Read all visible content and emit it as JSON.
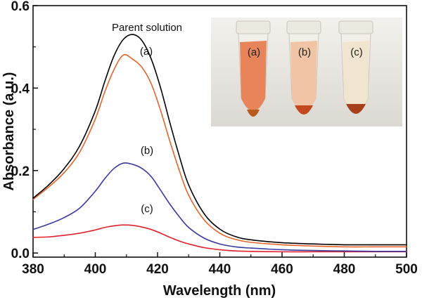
{
  "chart_data": {
    "type": "line",
    "title": "",
    "xlabel": "Wavelength (nm)",
    "ylabel": "Absorbance (a.u.)",
    "xlim": [
      380,
      500
    ],
    "ylim": [
      -0.01,
      0.6
    ],
    "xticks": [
      380,
      400,
      420,
      440,
      460,
      480,
      500
    ],
    "yticks": [
      0.0,
      0.2,
      0.4,
      0.6
    ],
    "ytick_labels": [
      "0.0",
      "0.2",
      "0.4",
      "0.6"
    ],
    "grid": false,
    "x": [
      380,
      385,
      390,
      395,
      400,
      403,
      406,
      409,
      412,
      415,
      418,
      421,
      424,
      427,
      430,
      435,
      440,
      445,
      450,
      460,
      470,
      480,
      490,
      500
    ],
    "series": [
      {
        "name": "Parent solution",
        "color": "#000000",
        "values": [
          0.133,
          0.165,
          0.205,
          0.26,
          0.345,
          0.415,
          0.478,
          0.518,
          0.53,
          0.515,
          0.47,
          0.4,
          0.315,
          0.235,
          0.165,
          0.095,
          0.058,
          0.04,
          0.032,
          0.025,
          0.022,
          0.02,
          0.02,
          0.02
        ]
      },
      {
        "name": "(a)",
        "color": "#e8642a",
        "values": [
          0.13,
          0.16,
          0.195,
          0.245,
          0.325,
          0.39,
          0.445,
          0.48,
          0.47,
          0.45,
          0.41,
          0.345,
          0.27,
          0.2,
          0.14,
          0.08,
          0.048,
          0.033,
          0.026,
          0.02,
          0.017,
          0.015,
          0.015,
          0.015
        ]
      },
      {
        "name": "(b)",
        "color": "#3a3aa0",
        "values": [
          0.057,
          0.07,
          0.086,
          0.109,
          0.15,
          0.18,
          0.205,
          0.218,
          0.215,
          0.205,
          0.185,
          0.152,
          0.118,
          0.088,
          0.062,
          0.036,
          0.022,
          0.015,
          0.012,
          0.008,
          0.006,
          0.005,
          0.004,
          0.004
        ]
      },
      {
        "name": "(c)",
        "color": "#e3212c",
        "values": [
          0.038,
          0.039,
          0.043,
          0.048,
          0.056,
          0.062,
          0.066,
          0.068,
          0.067,
          0.063,
          0.057,
          0.048,
          0.038,
          0.029,
          0.022,
          0.013,
          0.008,
          0.005,
          0.004,
          0.003,
          0.003,
          0.003,
          0.003,
          0.003
        ]
      }
    ],
    "annotations": [
      {
        "text": "Parent solution",
        "series": "Parent solution"
      },
      {
        "text": "(a)",
        "series": "(a)"
      },
      {
        "text": "(b)",
        "series": "(b)"
      },
      {
        "text": "(c)",
        "series": "(c)"
      }
    ],
    "inset": {
      "description": "photo of three sample tubes",
      "tubes": [
        {
          "label": "(a)",
          "liquid_color": "#e8845a"
        },
        {
          "label": "(b)",
          "liquid_color": "#f0c4a4"
        },
        {
          "label": "(c)",
          "liquid_color": "#f1e5cf"
        }
      ]
    }
  }
}
